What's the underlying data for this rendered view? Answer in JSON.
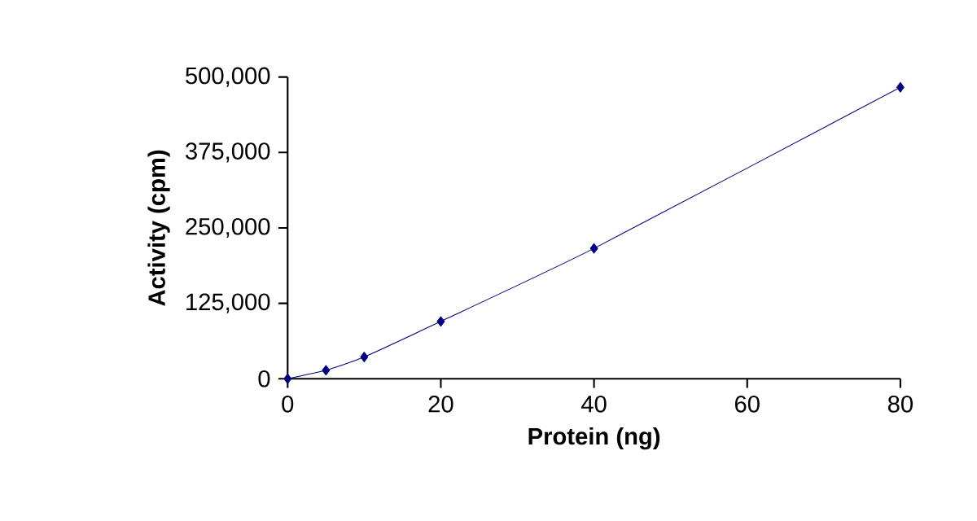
{
  "chart_data": {
    "type": "line",
    "xlabel": "Protein (ng)",
    "ylabel": "Activity (cpm)",
    "x": [
      0,
      5,
      10,
      20,
      40,
      80
    ],
    "series": [
      {
        "color": "#000080",
        "values": [
          0,
          14000,
          36000,
          95000,
          216000,
          483000
        ]
      }
    ],
    "xlim": [
      0,
      80
    ],
    "xticks": [
      0,
      20,
      40,
      60,
      80
    ],
    "ylim": [
      0,
      500000
    ],
    "yticks": [
      {
        "value": 0,
        "label": "0"
      },
      {
        "value": 125000,
        "label": "125,000"
      },
      {
        "value": 250000,
        "label": "250,000"
      },
      {
        "value": 375000,
        "label": "375,000"
      },
      {
        "value": 500000,
        "label": "500,000"
      }
    ],
    "marker": "diamond",
    "grid": false
  }
}
